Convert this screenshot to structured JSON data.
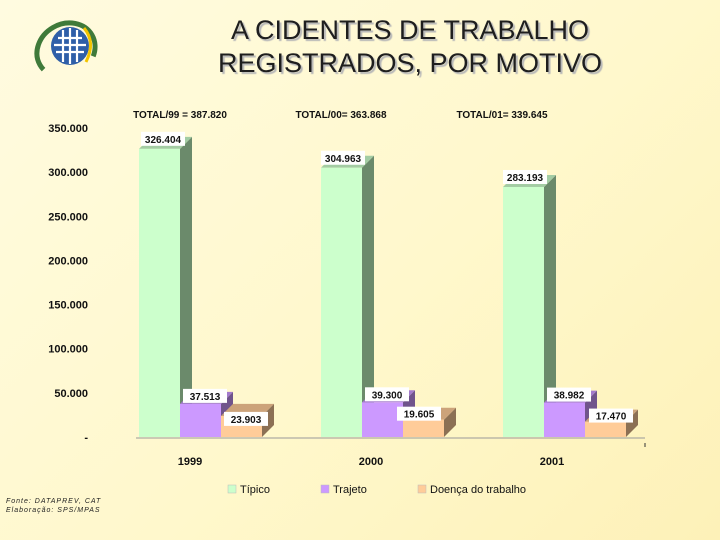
{
  "header": {
    "title_line1": "A CIDENTES DE TRABALHO",
    "title_line2": "REGISTRADOS, POR MOTIVO"
  },
  "footer": {
    "source": "Fonte: DATAPREV, CAT",
    "prepared_by": "Elaboração: SPS/MPAS"
  },
  "logo": {
    "icon": "institution-globe-logo",
    "colors": [
      "#3f7a3a",
      "#2f5fa8"
    ]
  },
  "chart_data": {
    "type": "bar",
    "style": "3d-grouped",
    "categories": [
      "1999",
      "2000",
      "2001"
    ],
    "totals": [
      "TOTAL/99 = 387.820",
      "TOTAL/00= 363.868",
      "TOTAL/01= 339.645"
    ],
    "series": [
      {
        "name": "Típico",
        "values": [
          326404,
          304963,
          283193
        ],
        "labels": [
          "326.404",
          "304.963",
          "283.193"
        ],
        "color": "#ccffcc"
      },
      {
        "name": "Trajeto",
        "values": [
          37513,
          39300,
          38982
        ],
        "labels": [
          "37.513",
          "39.300",
          "38.982"
        ],
        "color": "#cc99ff"
      },
      {
        "name": "Doença do trabalho",
        "values": [
          23903,
          19605,
          17470
        ],
        "labels": [
          "23.903",
          "19.605",
          "17.470"
        ],
        "color": "#ffcc99"
      }
    ],
    "yticks": [
      0,
      50000,
      100000,
      150000,
      200000,
      250000,
      300000,
      350000
    ],
    "ytick_labels": [
      "-",
      "50.000",
      "100.000",
      "150.000",
      "200.000",
      "250.000",
      "300.000",
      "350.000"
    ],
    "ylim": [
      0,
      350000
    ],
    "grid": false,
    "legend_position": "bottom"
  }
}
